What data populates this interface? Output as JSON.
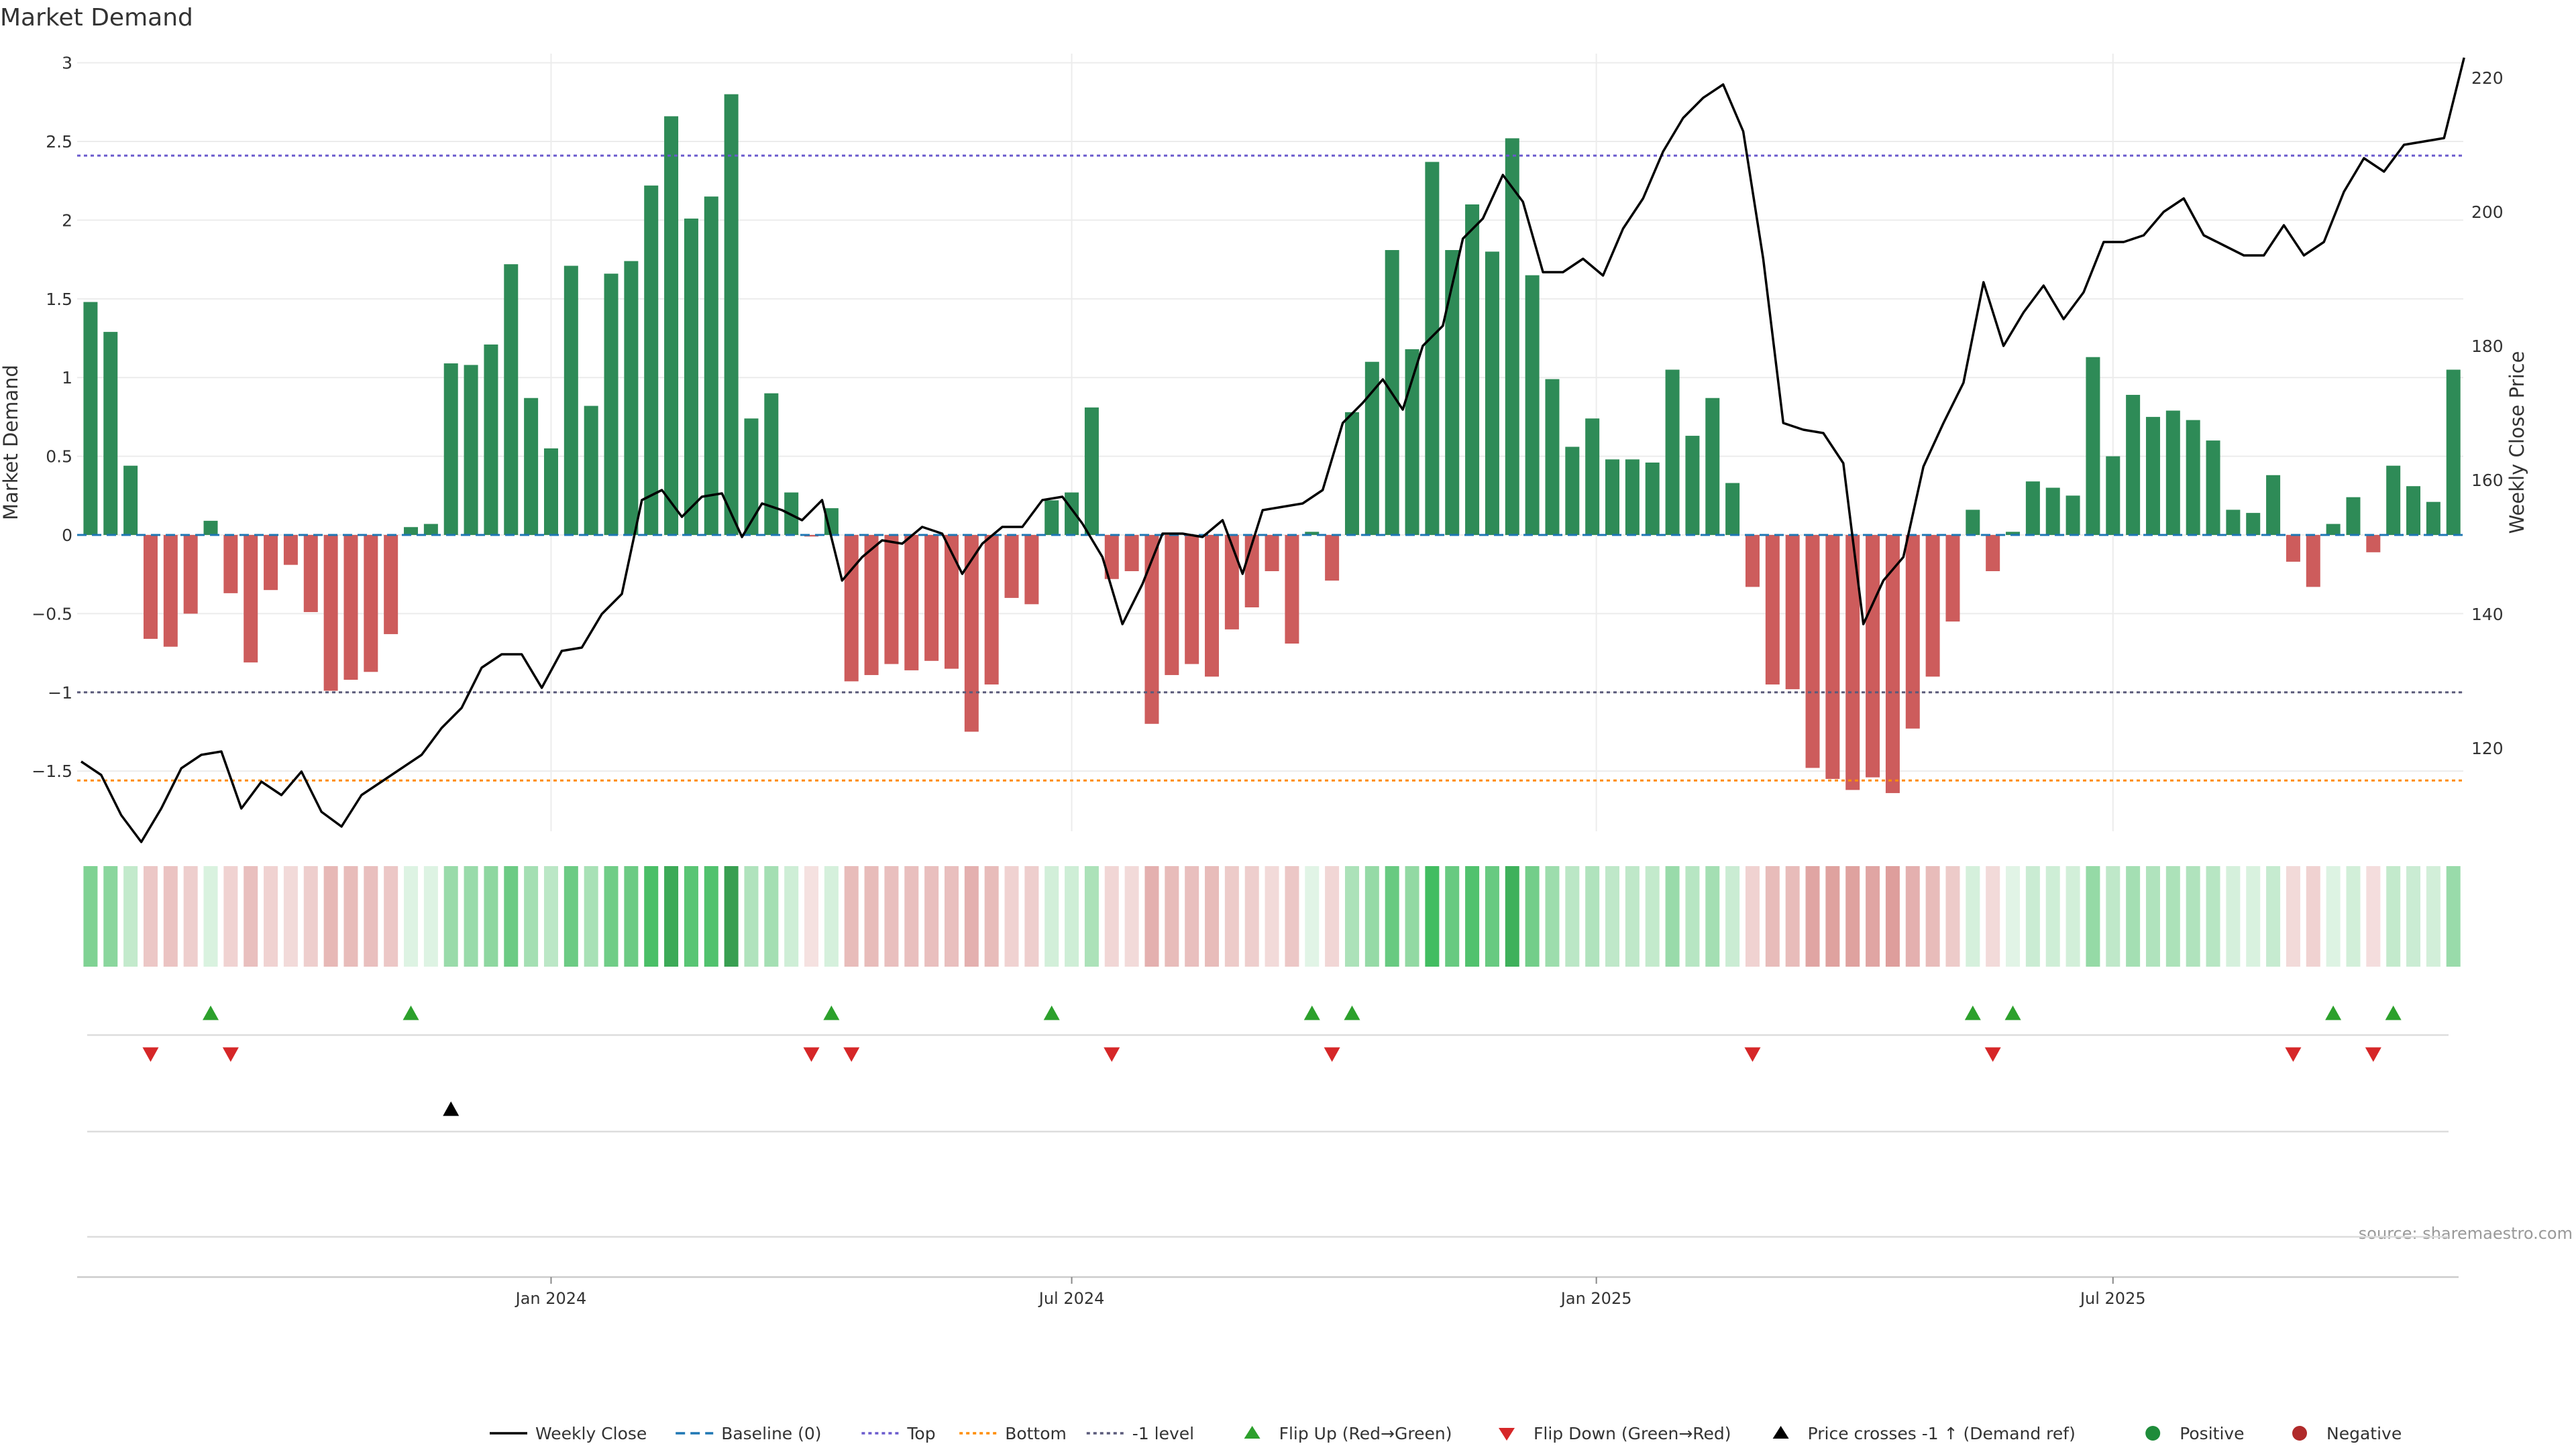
{
  "chart_data": {
    "type": "bar",
    "title": "Market Demand",
    "ylabel": "Market Demand",
    "y2label": "Weekly Close Price",
    "ylim": [
      -1.88,
      3.0
    ],
    "y2lim": [
      108.3,
      222.5
    ],
    "yticks": [
      {
        "v": 3,
        "label": "3"
      },
      {
        "v": 2.5,
        "label": "2.5"
      },
      {
        "v": 2,
        "label": "2"
      },
      {
        "v": 1.5,
        "label": "1.5"
      },
      {
        "v": 1,
        "label": "1"
      },
      {
        "v": 0.5,
        "label": "0.5"
      },
      {
        "v": 0,
        "label": "0"
      },
      {
        "v": -0.5,
        "label": "−0.5"
      },
      {
        "v": -1,
        "label": "−1"
      },
      {
        "v": -1.5,
        "label": "−1.5"
      }
    ],
    "y2ticks": [
      {
        "v": 220,
        "label": "220"
      },
      {
        "v": 200,
        "label": "200"
      },
      {
        "v": 180,
        "label": "180"
      },
      {
        "v": 160,
        "label": "160"
      },
      {
        "v": 140,
        "label": "140"
      },
      {
        "v": 120,
        "label": "120"
      }
    ],
    "xticks": [
      {
        "week": 23.5,
        "label": "Jan 2024"
      },
      {
        "week": 49.5,
        "label": "Jul 2024"
      },
      {
        "week": 75.7,
        "label": "Jan 2025"
      },
      {
        "week": 101.5,
        "label": "Jul 2025"
      }
    ],
    "levels": {
      "top": 2.41,
      "bottom": -1.56,
      "minus_one": -1.0,
      "baseline": 0
    },
    "demand": [
      1.48,
      1.29,
      0.44,
      -0.66,
      -0.71,
      -0.5,
      0.09,
      -0.37,
      -0.81,
      -0.35,
      -0.19,
      -0.49,
      -0.99,
      -0.92,
      -0.87,
      -0.63,
      0.05,
      0.07,
      1.09,
      1.08,
      1.21,
      1.72,
      0.87,
      0.55,
      1.71,
      0.82,
      1.66,
      1.74,
      2.22,
      2.66,
      2.01,
      2.15,
      2.8,
      0.74,
      0.9,
      0.27,
      -0.01,
      0.17,
      -0.93,
      -0.89,
      -0.82,
      -0.86,
      -0.8,
      -0.85,
      -1.25,
      -0.95,
      -0.4,
      -0.44,
      0.22,
      0.27,
      0.81,
      -0.28,
      -0.23,
      -1.2,
      -0.89,
      -0.82,
      -0.9,
      -0.6,
      -0.46,
      -0.23,
      -0.69,
      0.02,
      -0.29,
      0.78,
      1.1,
      1.81,
      1.18,
      2.37,
      1.81,
      2.1,
      1.8,
      2.52,
      1.65,
      0.99,
      0.56,
      0.74,
      0.48,
      0.48,
      0.46,
      1.05,
      0.63,
      0.87,
      0.33,
      -0.33,
      -0.95,
      -0.98,
      -1.48,
      -1.55,
      -1.62,
      -1.54,
      -1.64,
      -1.23,
      -0.9,
      -0.55,
      0.16,
      -0.23,
      0.02,
      0.34,
      0.3,
      0.25,
      1.13,
      0.5,
      0.89,
      0.75,
      0.79,
      0.73,
      0.6,
      0.16,
      0.14,
      0.38,
      -0.17,
      -0.33,
      0.07,
      0.24,
      -0.11,
      0.44,
      0.31,
      0.21,
      1.05
    ],
    "close": [
      118,
      116,
      110,
      106,
      111,
      117,
      119,
      119.5,
      111,
      115,
      113,
      116.5,
      110.5,
      108.3,
      113,
      115,
      117,
      119,
      123,
      126,
      132,
      134,
      134,
      129,
      134.5,
      135,
      140,
      143,
      157,
      158.5,
      154.5,
      157.5,
      158,
      151.5,
      156.5,
      155.5,
      154,
      157,
      145,
      148.5,
      151,
      150.5,
      153,
      152,
      146,
      150.5,
      153,
      153,
      157,
      157.5,
      153.5,
      148.5,
      138.5,
      144.5,
      152,
      152,
      151.5,
      154,
      146,
      155.5,
      156,
      156.5,
      158.5,
      168.5,
      171.5,
      175,
      170.5,
      180,
      183,
      196,
      199,
      205.5,
      201.5,
      191,
      191,
      193,
      190.5,
      197.5,
      202,
      209,
      214,
      217,
      219,
      212,
      193,
      168.5,
      167.5,
      167,
      162.5,
      138.5,
      145,
      148.5,
      162,
      168.5,
      174.5,
      189.5,
      180,
      185,
      189,
      184,
      188,
      195.5,
      195.5,
      196.5,
      200,
      202,
      196.5,
      195,
      193.5,
      193.5,
      198,
      193.5,
      195.5,
      203,
      208,
      206,
      210,
      210.5,
      211,
      223
    ],
    "flip_up_weeks": [
      6,
      16,
      37,
      48,
      61,
      63,
      94,
      96,
      112,
      115
    ],
    "flip_down_weeks": [
      3,
      7,
      36,
      38,
      51,
      62,
      83,
      95,
      110,
      114
    ],
    "cross_weeks": [
      18
    ],
    "legend": [
      {
        "label": "Weekly Close",
        "kind": "line",
        "color": "#000000"
      },
      {
        "label": "Baseline (0)",
        "kind": "dash",
        "color": "#1f77b4"
      },
      {
        "label": "Top",
        "kind": "dot",
        "color": "#6a5acd"
      },
      {
        "label": "Bottom",
        "kind": "dot",
        "color": "#ff8c00"
      },
      {
        "label": "-1 level",
        "kind": "dot",
        "color": "#5a5a7a"
      },
      {
        "label": "Flip Up (Red→Green)",
        "kind": "tri-up",
        "color": "#2ca02c"
      },
      {
        "label": "Flip Down (Green→Red)",
        "kind": "tri-down",
        "color": "#d62728"
      },
      {
        "label": "Price crosses -1 ↑ (Demand ref)",
        "kind": "tri-up",
        "color": "#000000"
      },
      {
        "label": "Positive",
        "kind": "dot-marker",
        "color": "#1e8c3a"
      },
      {
        "label": "Negative",
        "kind": "dot-marker",
        "color": "#b02a2a"
      }
    ],
    "source": "source: sharemaestro.com"
  },
  "colors": {
    "positive": "#2e8b57",
    "negative": "#cd5c5c",
    "grid": "#ececec",
    "axis": "#cccccc"
  }
}
